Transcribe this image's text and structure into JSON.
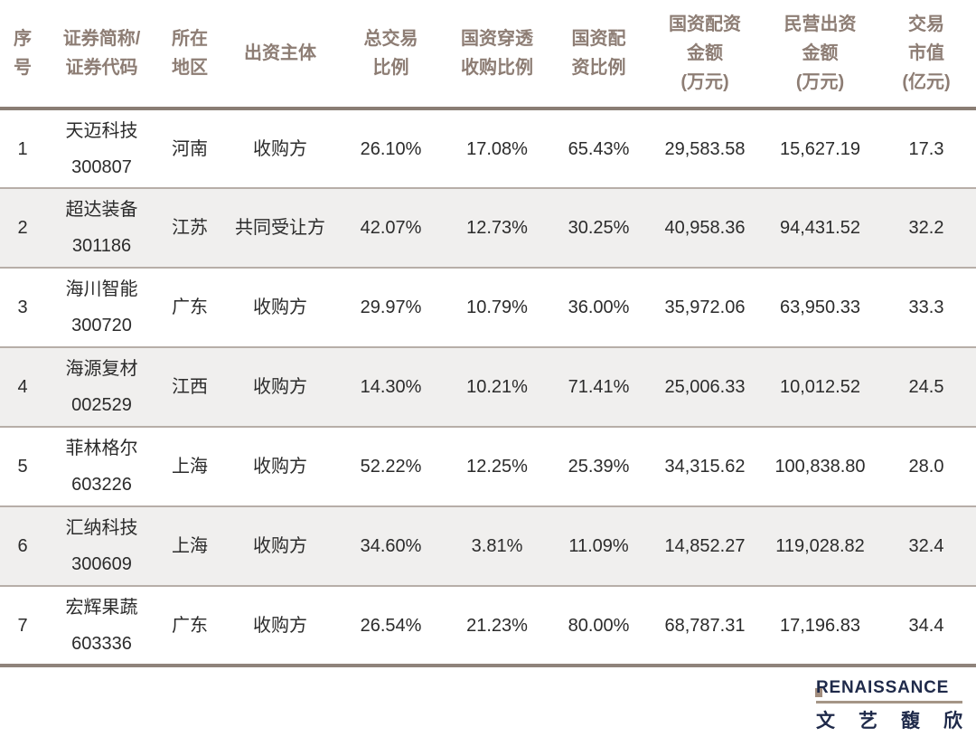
{
  "chart_data": {
    "type": "table",
    "title": "",
    "columns": [
      {
        "key": "num",
        "label": "序\n号"
      },
      {
        "key": "name_code",
        "label": "证券简称/\n证券代码"
      },
      {
        "key": "region",
        "label": "所在\n地区"
      },
      {
        "key": "entity",
        "label": "出资主体"
      },
      {
        "key": "total_ratio",
        "label": "总交易\n比例"
      },
      {
        "key": "penetration_ratio",
        "label": "国资穿透\n收购比例"
      },
      {
        "key": "allocation_ratio",
        "label": "国资配\n资比例"
      },
      {
        "key": "allocation_amount",
        "label": "国资配资\n金额\n(万元)"
      },
      {
        "key": "private_amount",
        "label": "民营出资\n金额\n(万元)"
      },
      {
        "key": "market_value",
        "label": "交易\n市值\n(亿元)"
      }
    ],
    "rows": [
      {
        "num": "1",
        "name_code": "天迈科技\n300807",
        "region": "河南",
        "entity": "收购方",
        "total_ratio": "26.10%",
        "penetration_ratio": "17.08%",
        "allocation_ratio": "65.43%",
        "allocation_amount": "29,583.58",
        "private_amount": "15,627.19",
        "market_value": "17.3"
      },
      {
        "num": "2",
        "name_code": "超达装备\n301186",
        "region": "江苏",
        "entity": "共同受让方",
        "total_ratio": "42.07%",
        "penetration_ratio": "12.73%",
        "allocation_ratio": "30.25%",
        "allocation_amount": "40,958.36",
        "private_amount": "94,431.52",
        "market_value": "32.2"
      },
      {
        "num": "3",
        "name_code": "海川智能\n300720",
        "region": "广东",
        "entity": "收购方",
        "total_ratio": "29.97%",
        "penetration_ratio": "10.79%",
        "allocation_ratio": "36.00%",
        "allocation_amount": "35,972.06",
        "private_amount": "63,950.33",
        "market_value": "33.3"
      },
      {
        "num": "4",
        "name_code": "海源复材\n002529",
        "region": "江西",
        "entity": "收购方",
        "total_ratio": "14.30%",
        "penetration_ratio": "10.21%",
        "allocation_ratio": "71.41%",
        "allocation_amount": "25,006.33",
        "private_amount": "10,012.52",
        "market_value": "24.5"
      },
      {
        "num": "5",
        "name_code": "菲林格尔\n603226",
        "region": "上海",
        "entity": "收购方",
        "total_ratio": "52.22%",
        "penetration_ratio": "12.25%",
        "allocation_ratio": "25.39%",
        "allocation_amount": "34,315.62",
        "private_amount": "100,838.80",
        "market_value": "28.0"
      },
      {
        "num": "6",
        "name_code": "汇纳科技\n300609",
        "region": "上海",
        "entity": "收购方",
        "total_ratio": "34.60%",
        "penetration_ratio": "3.81%",
        "allocation_ratio": "11.09%",
        "allocation_amount": "14,852.27",
        "private_amount": "119,028.82",
        "market_value": "32.4"
      },
      {
        "num": "7",
        "name_code": "宏辉果蔬\n603336",
        "region": "广东",
        "entity": "收购方",
        "total_ratio": "26.54%",
        "penetration_ratio": "21.23%",
        "allocation_ratio": "80.00%",
        "allocation_amount": "68,787.31",
        "private_amount": "17,196.83",
        "market_value": "34.4"
      }
    ],
    "layout": {
      "grid": "horizontal row separators only",
      "alternating_row_shading": "even rows light gray",
      "header_divider": "thick taupe rule below header and below last row"
    }
  },
  "footer": {
    "logo_initial": "R",
    "logo_rest": "ENAISSANCE",
    "logo_cn": "文 艺 馥 欣"
  },
  "colors": {
    "header_text": "#8d7d74",
    "divider_thick": "#8a7d74",
    "divider_thin": "#b7aea8",
    "row_alt_bg": "#f0efee",
    "data_text": "#2b2b2b",
    "logo_navy": "#1f2a4a",
    "logo_tan": "#a28d7e"
  }
}
